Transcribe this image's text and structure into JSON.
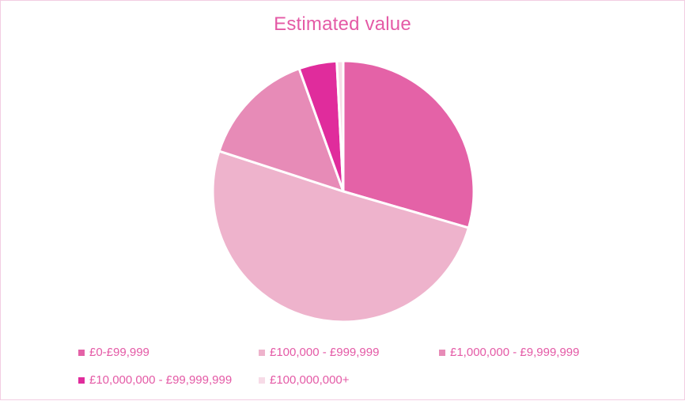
{
  "chart_data": {
    "type": "pie",
    "title": "Estimated value",
    "categories": [
      "£0-£99,999",
      "£100,000 - £999,999",
      "£1,000,000 - £9,999,999",
      "£10,000,000 - £99,999,999",
      "£100,000,000+"
    ],
    "values": [
      29.5,
      50.5,
      14.5,
      4.7,
      0.8
    ],
    "colors": [
      "#e462a7",
      "#eeb3cc",
      "#e78bb7",
      "#e02c9c",
      "#f7dbe7"
    ],
    "legend_position": "bottom"
  }
}
